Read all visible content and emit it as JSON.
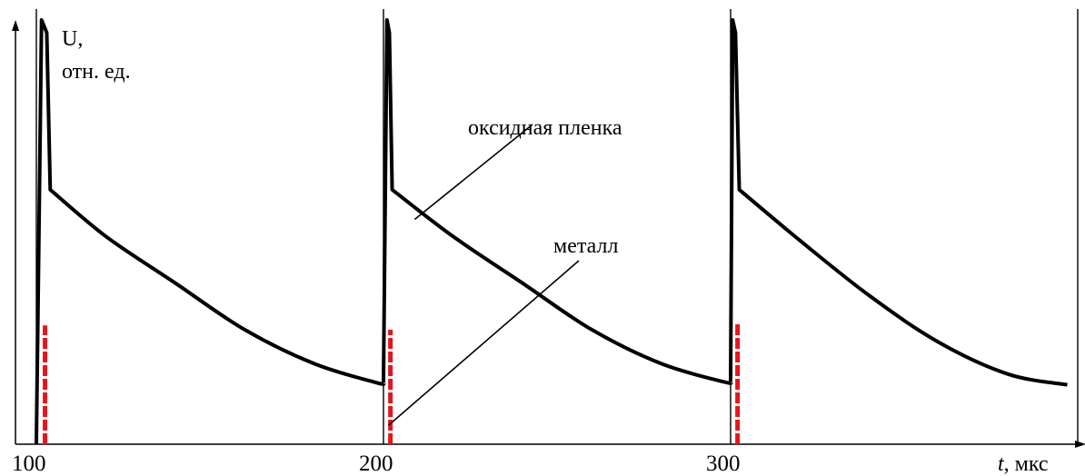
{
  "chart_data": {
    "type": "line",
    "ylabel_line1": "U,",
    "ylabel_line2": "отн. ед.",
    "xlabel_italic": "t",
    "xlabel_rest": ", мкс",
    "x_ticks": [
      100,
      200,
      300
    ],
    "xlim": [
      94,
      400
    ],
    "ylim": [
      0,
      1
    ],
    "grid": false,
    "vertical_lines": [
      100,
      200,
      300,
      400
    ],
    "series": [
      {
        "color": "#000000",
        "style": "solid",
        "segments": [
          {
            "x": [
              100,
              101.5,
              103,
              104,
              120,
              140,
              160,
              180,
              198,
              200
            ],
            "y": [
              0,
              1.0,
              0.97,
              0.6,
              0.49,
              0.38,
              0.27,
              0.19,
              0.145,
              0.145
            ]
          },
          {
            "x": [
              200,
              201,
              201.7,
              202.5,
              220,
              240,
              260,
              280,
              298,
              300
            ],
            "y": [
              0.145,
              1.0,
              0.97,
              0.6,
              0.49,
              0.38,
              0.27,
              0.19,
              0.147,
              0.147
            ]
          },
          {
            "x": [
              300,
              300.6,
              301.4,
              302.5,
              320,
              340,
              360,
              380,
              397
            ],
            "y": [
              0.147,
              1.0,
              0.97,
              0.6,
              0.48,
              0.35,
              0.24,
              0.165,
              0.14
            ]
          }
        ]
      },
      {
        "color": "#e8141c",
        "style": "dashed",
        "segments": [
          {
            "x": [
              102.5,
              102.5
            ],
            "y": [
              0,
              0.28
            ]
          },
          {
            "x": [
              202,
              202
            ],
            "y": [
              0,
              0.27
            ]
          },
          {
            "x": [
              302,
              302
            ],
            "y": [
              0,
              0.285
            ]
          }
        ]
      }
    ],
    "annotations": [
      {
        "text": "оксидная пленка",
        "x": 209,
        "y": 0.53
      },
      {
        "text": "металл",
        "x": 201.5,
        "y": 0.045
      }
    ]
  }
}
